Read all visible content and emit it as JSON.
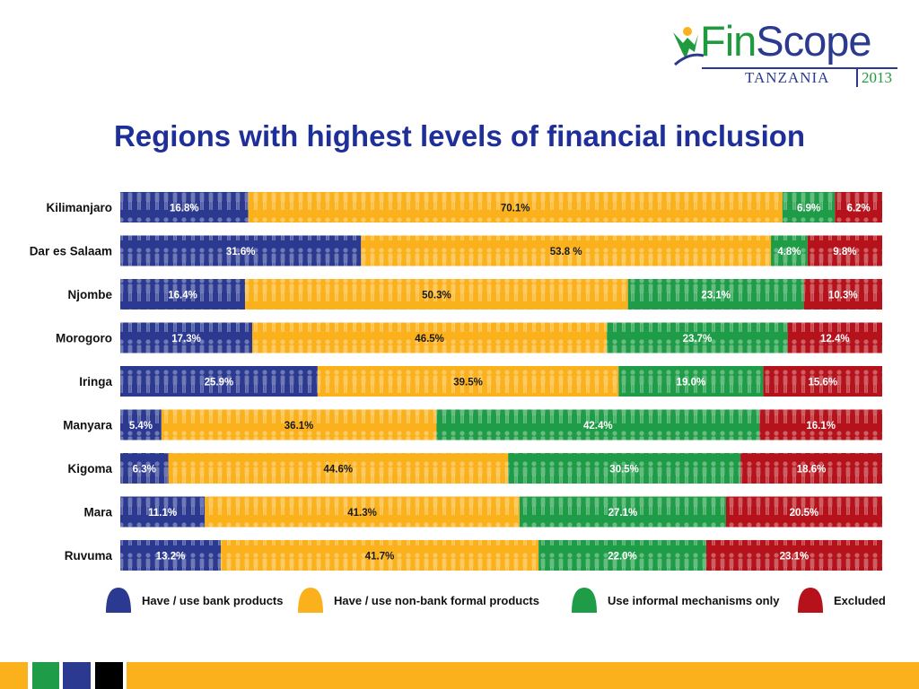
{
  "logo": {
    "brand_part1": "Fin",
    "brand_part2": "Scope",
    "country": "TANZANIA",
    "year": "2013"
  },
  "title": "Regions with highest levels of financial inclusion",
  "colors": {
    "bank": "#2b3990",
    "nonbank": "#fbb11b",
    "informal": "#1f9c47",
    "excluded": "#b5121b",
    "title": "#1f2f9a",
    "strip_yellow": "#fbb11b"
  },
  "chart_data": {
    "type": "bar",
    "orientation": "horizontal",
    "stacked": true,
    "categories": [
      "Kilimanjaro",
      "Dar es Salaam",
      "Njombe",
      "Morogoro",
      "Iringa",
      "Manyara",
      "Kigoma",
      "Mara",
      "Ruvuma"
    ],
    "series": [
      {
        "name": "Have / use bank products",
        "values": [
          16.8,
          31.6,
          16.4,
          17.3,
          25.9,
          5.4,
          6.3,
          11.1,
          13.2
        ],
        "labels": [
          "16.8%",
          "31.6%",
          "16.4%",
          "17.3%",
          "25.9%",
          "5.4%",
          "6.3%",
          "11.1%",
          "13.2%"
        ]
      },
      {
        "name": "Have / use non-bank formal products",
        "values": [
          70.1,
          53.8,
          50.3,
          46.5,
          39.5,
          36.1,
          44.6,
          41.3,
          41.7
        ],
        "labels": [
          "70.1%",
          "53.8 %",
          "50.3%",
          "46.5%",
          "39.5%",
          "36.1%",
          "44.6%",
          "41.3%",
          "41.7%"
        ]
      },
      {
        "name": "Use informal mechanisms only",
        "values": [
          6.9,
          4.8,
          23.1,
          23.7,
          19.0,
          42.4,
          30.5,
          27.1,
          22.0
        ],
        "labels": [
          "6.9%",
          "4.8%",
          "23.1%",
          "23.7%",
          "19.0%",
          "42.4%",
          "30.5%",
          "27.1%",
          "22.0%"
        ]
      },
      {
        "name": "Excluded",
        "values": [
          6.2,
          9.8,
          10.3,
          12.4,
          15.6,
          16.1,
          18.6,
          20.5,
          23.1
        ],
        "labels": [
          "6.2%",
          "9.8%",
          "10.3%",
          "12.4%",
          "15.6%",
          "16.1%",
          "18.6%",
          "20.5%",
          "23.1%"
        ]
      }
    ],
    "xlim": [
      0,
      100
    ],
    "legend_position": "bottom"
  }
}
